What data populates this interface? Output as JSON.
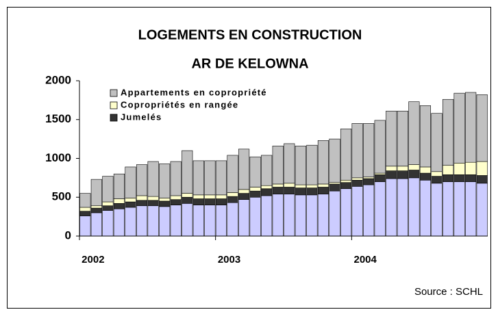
{
  "chart_data": {
    "type": "stacked_bar",
    "title": [
      "LOGEMENTS EN CONSTRUCTION",
      "AR DE KELOWNA"
    ],
    "categories": [
      "2002",
      null,
      null,
      null,
      null,
      null,
      null,
      null,
      null,
      null,
      null,
      null,
      "2003",
      null,
      null,
      null,
      null,
      null,
      null,
      null,
      null,
      null,
      null,
      null,
      "2004",
      null,
      null,
      null,
      null,
      null,
      null,
      null,
      null,
      null,
      null,
      null
    ],
    "series": [
      {
        "color": "#ccccff",
        "values": [
          260,
          300,
          330,
          350,
          370,
          390,
          390,
          380,
          400,
          420,
          400,
          400,
          400,
          430,
          470,
          500,
          520,
          540,
          540,
          530,
          530,
          540,
          580,
          610,
          640,
          660,
          700,
          740,
          740,
          750,
          720,
          680,
          700,
          700,
          700,
          680
        ]
      },
      {
        "name": "Jumelés",
        "color": "#333333",
        "values": [
          60,
          60,
          60,
          70,
          70,
          70,
          70,
          70,
          70,
          80,
          80,
          80,
          80,
          80,
          80,
          80,
          90,
          90,
          90,
          90,
          90,
          90,
          90,
          80,
          80,
          80,
          90,
          100,
          100,
          100,
          90,
          90,
          90,
          90,
          90,
          100
        ]
      },
      {
        "name": "Copropriétés en rangée",
        "color": "#ffffcc",
        "values": [
          50,
          30,
          50,
          60,
          50,
          60,
          50,
          40,
          50,
          50,
          50,
          50,
          50,
          50,
          50,
          50,
          40,
          40,
          50,
          40,
          40,
          40,
          20,
          30,
          30,
          20,
          20,
          60,
          60,
          70,
          80,
          60,
          120,
          150,
          160,
          180
        ]
      },
      {
        "name": "Appartements en copropriété",
        "color": "#c0c0c0",
        "values": [
          180,
          340,
          330,
          320,
          400,
          400,
          450,
          440,
          440,
          550,
          440,
          440,
          440,
          480,
          520,
          390,
          390,
          490,
          510,
          500,
          510,
          560,
          560,
          660,
          700,
          690,
          680,
          710,
          710,
          810,
          790,
          750,
          850,
          900,
          900,
          860
        ]
      }
    ],
    "ylim": [
      0,
      2000
    ],
    "yticks": [
      0,
      500,
      1000,
      1500,
      2000
    ],
    "legend": "upper left",
    "source": "Source : SCHL"
  }
}
